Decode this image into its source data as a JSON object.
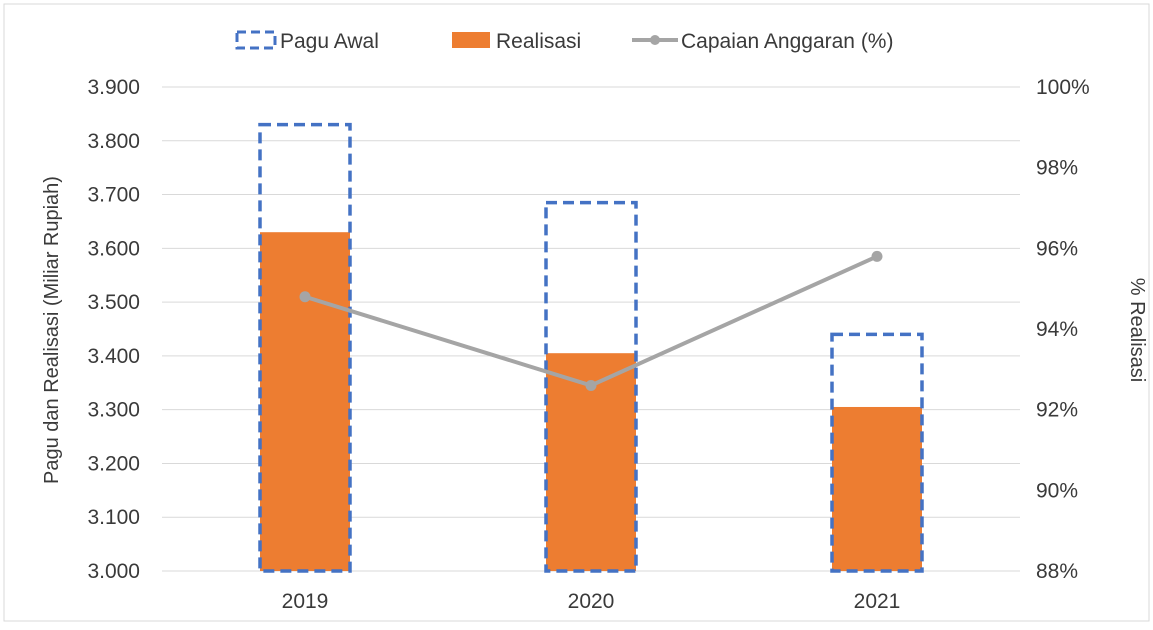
{
  "chart_data": {
    "type": "bar",
    "categories": [
      "2019",
      "2020",
      "2021"
    ],
    "series": [
      {
        "name": "Pagu Awal",
        "kind": "bar-dashed-outline",
        "color": "#4472C4",
        "values": [
          3830,
          3685,
          3440
        ]
      },
      {
        "name": "Realisasi",
        "kind": "bar",
        "color": "#ED7D31",
        "values": [
          3630,
          3405,
          3305
        ]
      },
      {
        "name": "Capaian Anggaran (%)",
        "kind": "line",
        "axis": "right",
        "color": "#A5A5A5",
        "values": [
          94.8,
          92.6,
          95.8
        ]
      }
    ],
    "y_left": {
      "label": "Pagu dan Realisasi (Miliar Rupiah)",
      "range": [
        3000,
        3900
      ],
      "ticks": [
        "3.000",
        "3.100",
        "3.200",
        "3.300",
        "3.400",
        "3.500",
        "3.600",
        "3.700",
        "3.800",
        "3.900"
      ]
    },
    "y_right": {
      "label": "% Realisasi",
      "range": [
        88,
        100
      ],
      "ticks": [
        "88%",
        "90%",
        "92%",
        "94%",
        "96%",
        "98%",
        "100%"
      ]
    },
    "grid": true,
    "legend": "top"
  }
}
